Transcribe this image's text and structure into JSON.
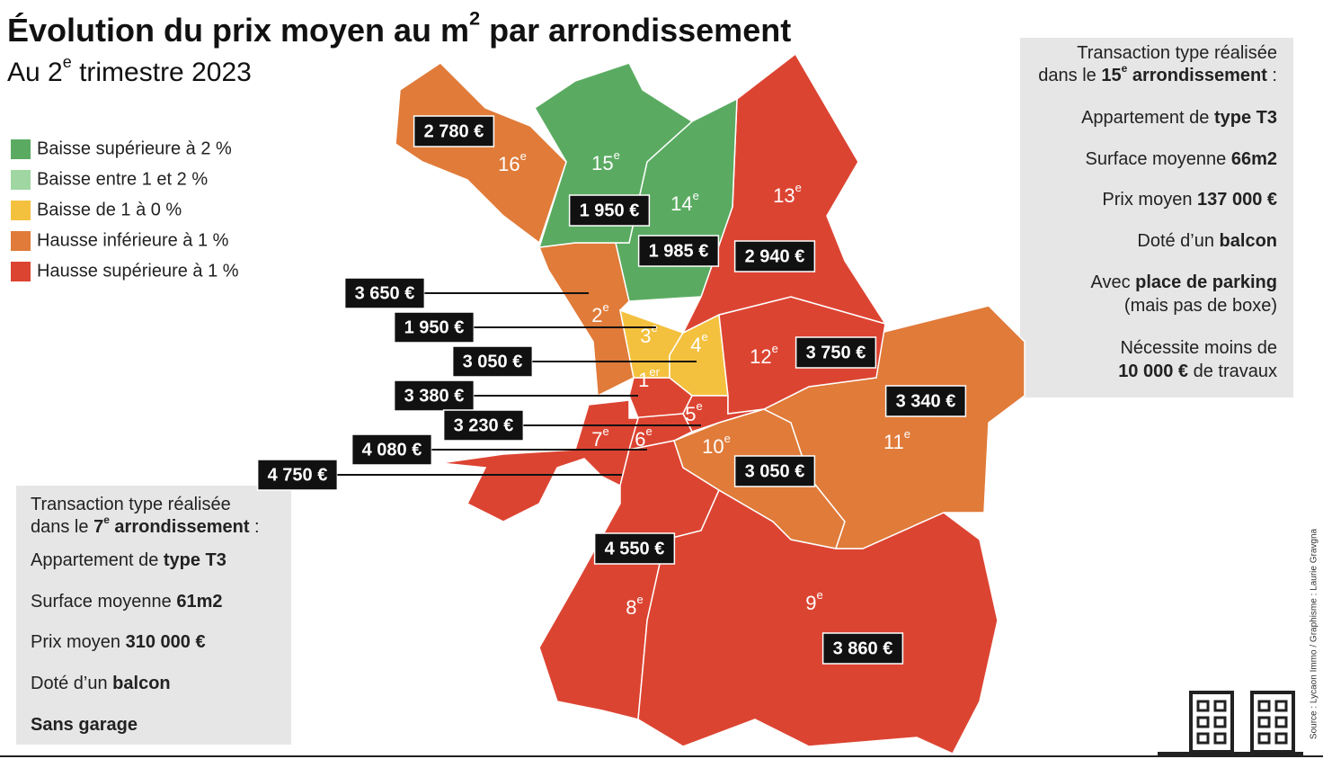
{
  "header": {
    "title": [
      {
        "text": "Évolution du prix moyen au m"
      },
      {
        "text": "2",
        "sup": true
      },
      {
        "text": " par arrondissement"
      }
    ],
    "subtitle": [
      {
        "text": "Au 2"
      },
      {
        "text": "e",
        "sup": true
      },
      {
        "text": " trimestre 2023"
      }
    ]
  },
  "legend": [
    {
      "label": "Baisse supérieure à 2 %",
      "color": "#5aab61"
    },
    {
      "label": "Baisse entre 1 et 2 %",
      "color": "#9fd6a2"
    },
    {
      "label": "Baisse de 1 à 0 %",
      "color": "#f4c13f"
    },
    {
      "label": "Hausse inférieure à 1 %",
      "color": "#e07b39"
    },
    {
      "label": "Hausse supérieure à 1 %",
      "color": "#dc4432"
    }
  ],
  "districts": [
    {
      "number": "1",
      "suffix": "er",
      "price": "3 380 €",
      "color": "#dc4432"
    },
    {
      "number": "2",
      "suffix": "e",
      "price": "3 650 €",
      "color": "#e07b39"
    },
    {
      "number": "3",
      "suffix": "e",
      "price": "1 950 €",
      "color": "#f4c13f"
    },
    {
      "number": "4",
      "suffix": "e",
      "price": "3 050 €",
      "color": "#f4c13f"
    },
    {
      "number": "5",
      "suffix": "e",
      "price": "3 230 €",
      "color": "#dc4432"
    },
    {
      "number": "6",
      "suffix": "e",
      "price": "4 080 €",
      "color": "#dc4432"
    },
    {
      "number": "7",
      "suffix": "e",
      "price": "4 750 €",
      "color": "#dc4432"
    },
    {
      "number": "8",
      "suffix": "e",
      "price": "4 550 €",
      "color": "#dc4432"
    },
    {
      "number": "9",
      "suffix": "e",
      "price": "3 860 €",
      "color": "#dc4432"
    },
    {
      "number": "10",
      "suffix": "e",
      "price": "3 050 €",
      "color": "#e07b39"
    },
    {
      "number": "11",
      "suffix": "e",
      "price": "3 340 €",
      "color": "#e07b39"
    },
    {
      "number": "12",
      "suffix": "e",
      "price": "3 750 €",
      "color": "#dc4432"
    },
    {
      "number": "13",
      "suffix": "e",
      "price": "2 940 €",
      "color": "#dc4432"
    },
    {
      "number": "14",
      "suffix": "e",
      "price": "1 985 €",
      "color": "#5aab61"
    },
    {
      "number": "15",
      "suffix": "e",
      "price": "1 950 €",
      "color": "#5aab61"
    },
    {
      "number": "16",
      "suffix": "e",
      "price": "2 780 €",
      "color": "#e07b39"
    }
  ],
  "box_15": {
    "lines": [
      [
        {
          "text": "Transaction type réalisée"
        }
      ],
      [
        {
          "text": "dans le "
        },
        {
          "text": "15",
          "bold": true
        },
        {
          "text": "e",
          "sup": true,
          "bold": true
        },
        {
          "text": " arrondissement",
          "bold": true
        },
        {
          "text": " :"
        }
      ],
      [
        {
          "text": "Appartement de "
        },
        {
          "text": "type T3",
          "bold": true
        }
      ],
      [
        {
          "text": "Surface moyenne "
        },
        {
          "text": "66m2",
          "bold": true
        }
      ],
      [
        {
          "text": "Prix moyen "
        },
        {
          "text": "137 000 €",
          "bold": true
        }
      ],
      [
        {
          "text": "Doté d’un "
        },
        {
          "text": "balcon",
          "bold": true
        }
      ],
      [
        {
          "text": "Avec "
        },
        {
          "text": "place de parking",
          "bold": true
        }
      ],
      [
        {
          "text": "(mais pas de boxe)"
        }
      ],
      [
        {
          "text": "Nécessite moins de"
        }
      ],
      [
        {
          "text": "10 000 €",
          "bold": true
        },
        {
          "text": " de travaux"
        }
      ]
    ]
  },
  "box_7": {
    "lines": [
      [
        {
          "text": "Transaction type réalisée"
        }
      ],
      [
        {
          "text": "dans le "
        },
        {
          "text": "7",
          "bold": true
        },
        {
          "text": "e",
          "sup": true,
          "bold": true
        },
        {
          "text": " arrondissement",
          "bold": true
        },
        {
          "text": " :"
        }
      ],
      [
        {
          "text": "Appartement de "
        },
        {
          "text": "type T3",
          "bold": true
        }
      ],
      [
        {
          "text": "Surface moyenne "
        },
        {
          "text": "61m2",
          "bold": true
        }
      ],
      [
        {
          "text": "Prix moyen "
        },
        {
          "text": "310 000 €",
          "bold": true
        }
      ],
      [
        {
          "text": "Doté d’un "
        },
        {
          "text": "balcon",
          "bold": true
        }
      ],
      [
        {
          "text": "Sans garage",
          "bold": true
        }
      ]
    ]
  },
  "source": "Source : Lycaon Immo / Graphisme : Laurie Gravgna"
}
